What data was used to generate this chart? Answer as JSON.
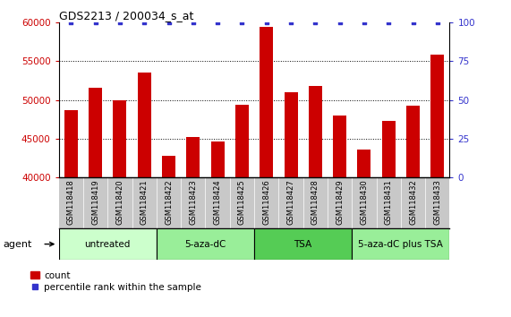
{
  "title": "GDS2213 / 200034_s_at",
  "samples": [
    "GSM118418",
    "GSM118419",
    "GSM118420",
    "GSM118421",
    "GSM118422",
    "GSM118423",
    "GSM118424",
    "GSM118425",
    "GSM118426",
    "GSM118427",
    "GSM118428",
    "GSM118429",
    "GSM118430",
    "GSM118431",
    "GSM118432",
    "GSM118433"
  ],
  "counts": [
    48700,
    51600,
    50000,
    53500,
    42800,
    45200,
    44600,
    49400,
    59400,
    51000,
    51800,
    48000,
    43600,
    47300,
    49200,
    55800
  ],
  "bar_color": "#cc0000",
  "dot_color": "#3333cc",
  "ylim_left": [
    40000,
    60000
  ],
  "ylim_right": [
    0,
    100
  ],
  "yticks_left": [
    40000,
    45000,
    50000,
    55000,
    60000
  ],
  "yticks_right": [
    0,
    25,
    50,
    75,
    100
  ],
  "groups": [
    {
      "label": "untreated",
      "start": 0,
      "end": 3,
      "color": "#ccffcc"
    },
    {
      "label": "5-aza-dC",
      "start": 4,
      "end": 7,
      "color": "#99ee99"
    },
    {
      "label": "TSA",
      "start": 8,
      "end": 11,
      "color": "#55cc55"
    },
    {
      "label": "5-aza-dC plus TSA",
      "start": 12,
      "end": 15,
      "color": "#99ee99"
    }
  ],
  "agent_label": "agent",
  "legend_count_label": "count",
  "legend_pct_label": "percentile rank within the sample",
  "xtick_bg": "#c8c8c8",
  "group_border": "#000000"
}
